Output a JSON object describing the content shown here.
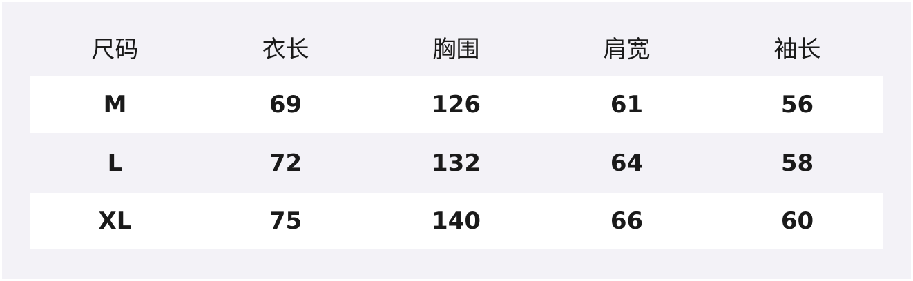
{
  "headers": [
    "尺码",
    "衣长",
    "胸围",
    "肩宽",
    "袖长"
  ],
  "rows": [
    [
      "M",
      "69",
      "126",
      "61",
      "56"
    ],
    [
      "L",
      "72",
      "132",
      "64",
      "58"
    ],
    [
      "XL",
      "75",
      "140",
      "66",
      "60"
    ]
  ]
}
